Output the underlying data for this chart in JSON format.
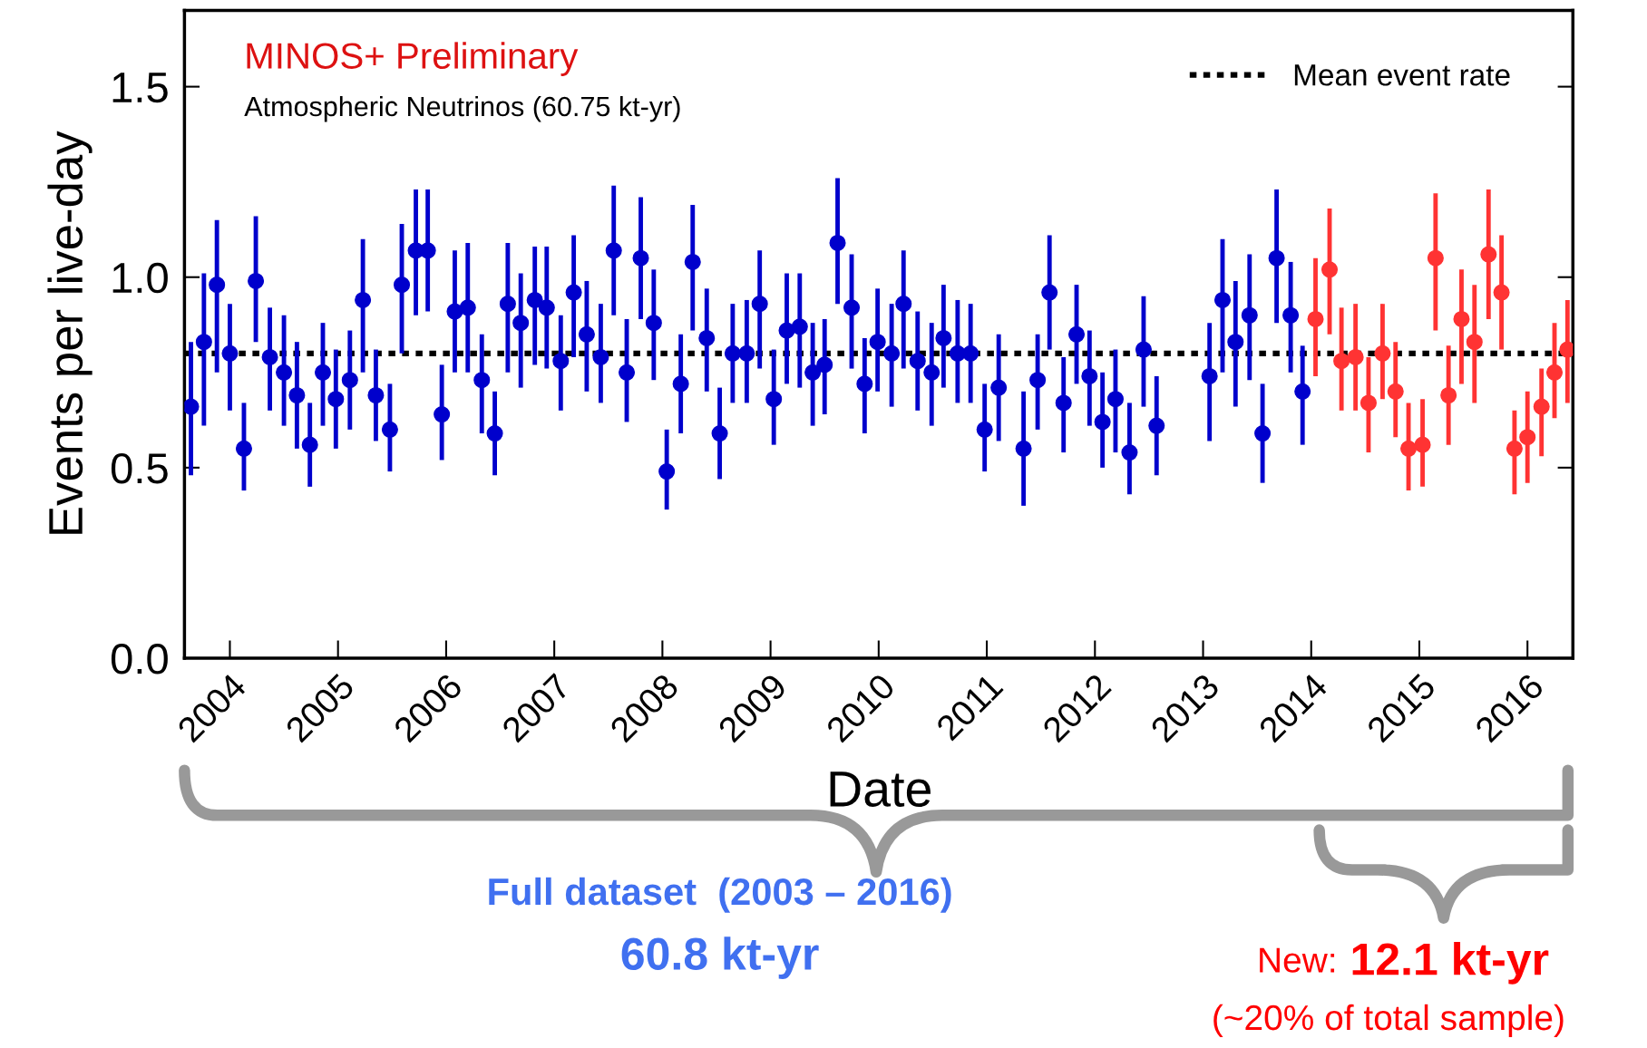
{
  "chart_data": {
    "type": "scatter",
    "ylabel": "Events per live-day",
    "xlabel": "Date",
    "xlim": [
      2003.58,
      2016.42
    ],
    "xticks": [
      2004,
      2005,
      2006,
      2007,
      2008,
      2009,
      2010,
      2011,
      2012,
      2013,
      2014,
      2015,
      2016
    ],
    "ylim": [
      0,
      1.7
    ],
    "yticks": [
      {
        "value": 0,
        "label": "0.0"
      },
      {
        "value": 0.5,
        "label": "0.5"
      },
      {
        "value": 1.0,
        "label": "1.0"
      },
      {
        "value": 1.5,
        "label": "1.5"
      }
    ],
    "marker": "circle",
    "grid": false,
    "legend": "top right",
    "ref_lines": [
      {
        "axis": "y",
        "value": 0.8,
        "label": "Mean event rate",
        "color": "#000000",
        "line_style": "dotted"
      }
    ],
    "annotations": [
      "MINOS+ Preliminary",
      "Atmospheric Neutrinos (60.75 kt-yr)",
      "Full dataset  (2003 – 2016)",
      "60.8 kt-yr",
      "New:",
      "12.1 kt-yr",
      "(~20% of total sample)"
    ],
    "series": [
      {
        "color": "#0000cc",
        "x": [
          2003.64,
          2003.76,
          2003.88,
          2004.0,
          2004.13,
          2004.24,
          2004.37,
          2004.5,
          2004.62,
          2004.74,
          2004.86,
          2004.98,
          2005.11,
          2005.23,
          2005.35,
          2005.48,
          2005.59,
          2005.72,
          2005.83,
          2005.96,
          2006.08,
          2006.2,
          2006.33,
          2006.45,
          2006.57,
          2006.69,
          2006.82,
          2006.93,
          2007.06,
          2007.18,
          2007.3,
          2007.43,
          2007.55,
          2007.67,
          2007.8,
          2007.92,
          2008.04,
          2008.17,
          2008.28,
          2008.41,
          2008.53,
          2008.65,
          2008.78,
          2008.9,
          2009.03,
          2009.15,
          2009.27,
          2009.39,
          2009.5,
          2009.62,
          2009.75,
          2009.87,
          2009.99,
          2010.12,
          2010.23,
          2010.36,
          2010.49,
          2010.6,
          2010.73,
          2010.85,
          2010.98,
          2011.11,
          2011.34,
          2011.47,
          2011.58,
          2011.71,
          2011.83,
          2011.95,
          2012.07,
          2012.19,
          2012.32,
          2012.45,
          2012.57,
          2013.06,
          2013.18,
          2013.3,
          2013.43,
          2013.55,
          2013.68,
          2013.81,
          2013.92
        ],
        "values": [
          0.66,
          0.83,
          0.98,
          0.8,
          0.55,
          0.99,
          0.79,
          0.75,
          0.69,
          0.56,
          0.75,
          0.68,
          0.73,
          0.94,
          0.69,
          0.6,
          0.98,
          1.07,
          1.07,
          0.64,
          0.91,
          0.92,
          0.73,
          0.59,
          0.93,
          0.88,
          0.94,
          0.92,
          0.78,
          0.96,
          0.85,
          0.79,
          1.07,
          0.75,
          1.05,
          0.88,
          0.49,
          0.72,
          1.04,
          0.84,
          0.59,
          0.8,
          0.8,
          0.93,
          0.68,
          0.86,
          0.87,
          0.75,
          0.77,
          1.09,
          0.92,
          0.72,
          0.83,
          0.8,
          0.93,
          0.78,
          0.75,
          0.84,
          0.8,
          0.8,
          0.6,
          0.71,
          0.55,
          0.73,
          0.96,
          0.67,
          0.85,
          0.74,
          0.62,
          0.68,
          0.54,
          0.81,
          0.61,
          0.74,
          0.94,
          0.83,
          0.9,
          0.59,
          1.05,
          0.9,
          0.7
        ],
        "errors": [
          [
            0.48,
            0.83
          ],
          [
            0.61,
            1.01
          ],
          [
            0.75,
            1.15
          ],
          [
            0.65,
            0.93
          ],
          [
            0.44,
            0.67
          ],
          [
            0.83,
            1.16
          ],
          [
            0.65,
            0.92
          ],
          [
            0.61,
            0.9
          ],
          [
            0.55,
            0.83
          ],
          [
            0.45,
            0.67
          ],
          [
            0.61,
            0.88
          ],
          [
            0.55,
            0.81
          ],
          [
            0.6,
            0.86
          ],
          [
            0.75,
            1.1
          ],
          [
            0.57,
            0.81
          ],
          [
            0.49,
            0.72
          ],
          [
            0.8,
            1.14
          ],
          [
            0.9,
            1.23
          ],
          [
            0.91,
            1.23
          ],
          [
            0.52,
            0.77
          ],
          [
            0.75,
            1.07
          ],
          [
            0.75,
            1.09
          ],
          [
            0.59,
            0.85
          ],
          [
            0.48,
            0.7
          ],
          [
            0.75,
            1.09
          ],
          [
            0.71,
            1.01
          ],
          [
            0.77,
            1.08
          ],
          [
            0.76,
            1.08
          ],
          [
            0.65,
            0.9
          ],
          [
            0.79,
            1.11
          ],
          [
            0.7,
            0.99
          ],
          [
            0.67,
            0.93
          ],
          [
            0.9,
            1.24
          ],
          [
            0.62,
            0.89
          ],
          [
            0.89,
            1.21
          ],
          [
            0.73,
            1.02
          ],
          [
            0.39,
            0.6
          ],
          [
            0.59,
            0.85
          ],
          [
            0.86,
            1.19
          ],
          [
            0.7,
            0.97
          ],
          [
            0.47,
            0.71
          ],
          [
            0.67,
            0.93
          ],
          [
            0.67,
            0.94
          ],
          [
            0.76,
            1.07
          ],
          [
            0.56,
            0.81
          ],
          [
            0.72,
            1.01
          ],
          [
            0.71,
            1.01
          ],
          [
            0.61,
            0.88
          ],
          [
            0.64,
            0.89
          ],
          [
            0.93,
            1.26
          ],
          [
            0.76,
            1.06
          ],
          [
            0.59,
            0.84
          ],
          [
            0.7,
            0.97
          ],
          [
            0.66,
            0.93
          ],
          [
            0.76,
            1.07
          ],
          [
            0.65,
            0.91
          ],
          [
            0.61,
            0.88
          ],
          [
            0.71,
            0.98
          ],
          [
            0.67,
            0.94
          ],
          [
            0.67,
            0.93
          ],
          [
            0.49,
            0.72
          ],
          [
            0.57,
            0.85
          ],
          [
            0.4,
            0.7
          ],
          [
            0.6,
            0.85
          ],
          [
            0.81,
            1.11
          ],
          [
            0.54,
            0.79
          ],
          [
            0.72,
            0.98
          ],
          [
            0.61,
            0.86
          ],
          [
            0.5,
            0.75
          ],
          [
            0.54,
            0.81
          ],
          [
            0.43,
            0.67
          ],
          [
            0.66,
            0.95
          ],
          [
            0.48,
            0.74
          ],
          [
            0.57,
            0.88
          ],
          [
            0.75,
            1.1
          ],
          [
            0.66,
            0.99
          ],
          [
            0.73,
            1.06
          ],
          [
            0.46,
            0.72
          ],
          [
            0.88,
            1.23
          ],
          [
            0.75,
            1.04
          ],
          [
            0.56,
            0.82
          ]
        ]
      },
      {
        "color": "#ff3333",
        "x": [
          2014.04,
          2014.17,
          2014.28,
          2014.41,
          2014.53,
          2014.66,
          2014.78,
          2014.9,
          2015.03,
          2015.15,
          2015.27,
          2015.39,
          2015.51,
          2015.64,
          2015.76,
          2015.88,
          2016.0,
          2016.13,
          2016.25,
          2016.37
        ],
        "values": [
          0.89,
          1.02,
          0.78,
          0.79,
          0.67,
          0.8,
          0.7,
          0.55,
          0.56,
          1.05,
          0.69,
          0.89,
          0.83,
          1.06,
          0.96,
          0.55,
          0.58,
          0.66,
          0.75,
          0.81
        ],
        "errors": [
          [
            0.74,
            1.05
          ],
          [
            0.85,
            1.18
          ],
          [
            0.65,
            0.92
          ],
          [
            0.65,
            0.93
          ],
          [
            0.54,
            0.79
          ],
          [
            0.68,
            0.93
          ],
          [
            0.58,
            0.83
          ],
          [
            0.44,
            0.67
          ],
          [
            0.45,
            0.68
          ],
          [
            0.86,
            1.22
          ],
          [
            0.56,
            0.82
          ],
          [
            0.72,
            1.02
          ],
          [
            0.67,
            0.98
          ],
          [
            0.89,
            1.23
          ],
          [
            0.81,
            1.11
          ],
          [
            0.43,
            0.65
          ],
          [
            0.46,
            0.7
          ],
          [
            0.53,
            0.76
          ],
          [
            0.63,
            0.88
          ],
          [
            0.67,
            0.94
          ]
        ]
      }
    ]
  }
}
